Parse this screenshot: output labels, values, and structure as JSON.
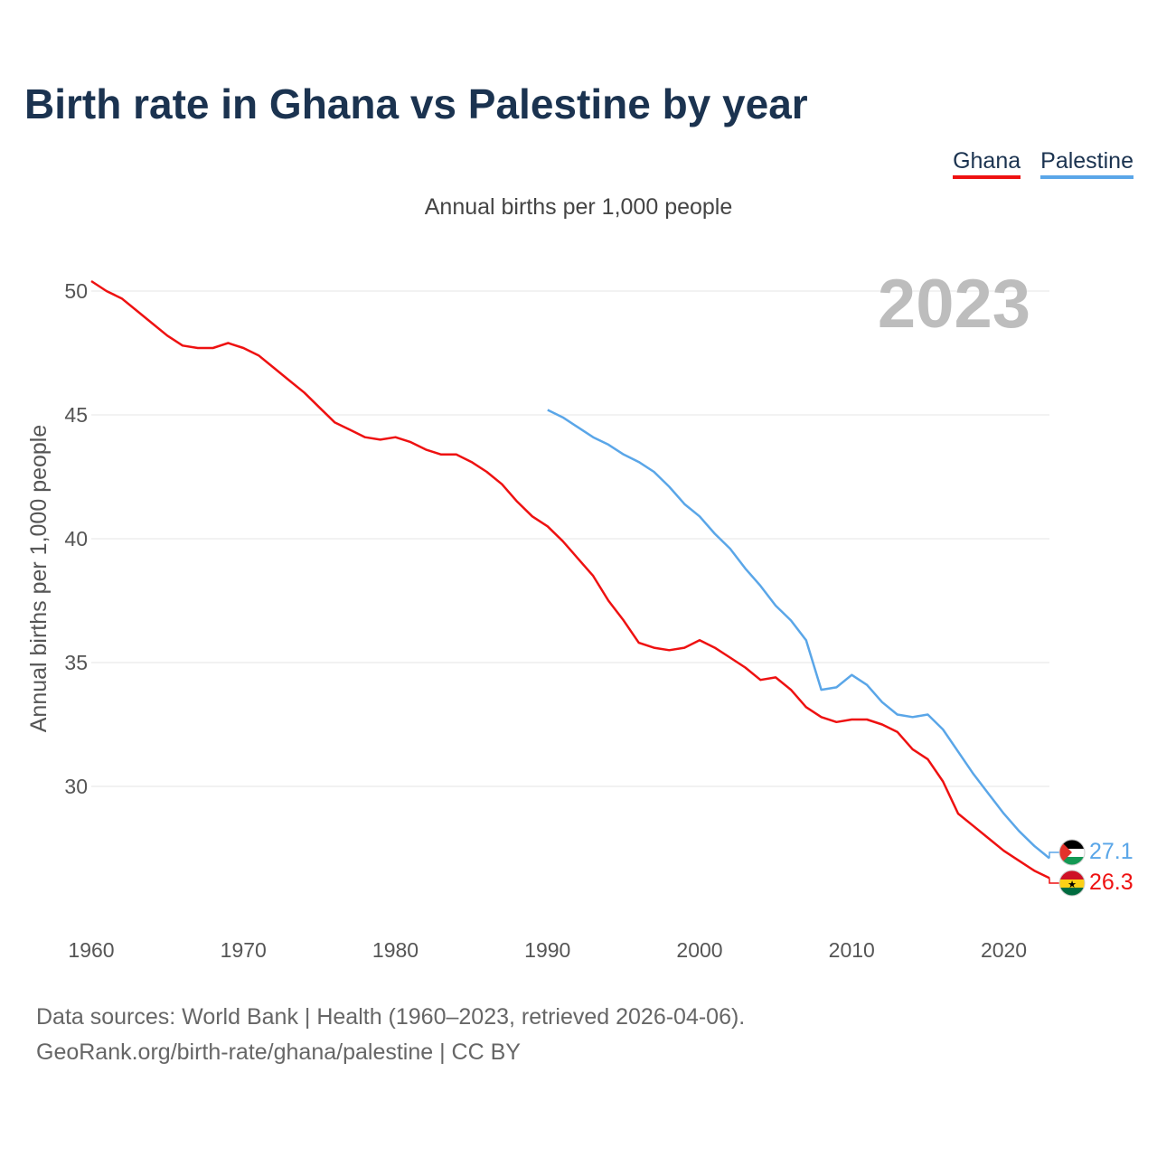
{
  "title": "Birth rate in Ghana vs Palestine by year",
  "subtitle": "Annual births per 1,000 people",
  "footer": {
    "line1": "Data sources: World Bank | Health (1960–2023, retrieved 2026-04-06).",
    "line2": "GeoRank.org/birth-rate/ghana/palestine | CC BY"
  },
  "colors": {
    "ghana": "#ee1111",
    "palestine": "#5aa6e8",
    "title": "#1b3350"
  },
  "chart_data": {
    "type": "line",
    "title": "Birth rate in Ghana vs Palestine by year",
    "ylabel": "Annual births per 1,000 people",
    "xlabel": "",
    "xlim": [
      1960,
      2023
    ],
    "ylim": [
      25,
      51
    ],
    "xticks": [
      1960,
      1970,
      1980,
      1990,
      2000,
      2010,
      2020
    ],
    "yticks": [
      30,
      35,
      40,
      45,
      50
    ],
    "grid": true,
    "legend": "top-right",
    "year_label": "2023",
    "series": [
      {
        "name": "Ghana",
        "color": "#ee1111",
        "flag": "ghana-flag",
        "end_label": "26.3",
        "x": [
          1960,
          1961,
          1962,
          1963,
          1964,
          1965,
          1966,
          1967,
          1968,
          1969,
          1970,
          1971,
          1972,
          1973,
          1974,
          1975,
          1976,
          1977,
          1978,
          1979,
          1980,
          1981,
          1982,
          1983,
          1984,
          1985,
          1986,
          1987,
          1988,
          1989,
          1990,
          1991,
          1992,
          1993,
          1994,
          1995,
          1996,
          1997,
          1998,
          1999,
          2000,
          2001,
          2002,
          2003,
          2004,
          2005,
          2006,
          2007,
          2008,
          2009,
          2010,
          2011,
          2012,
          2013,
          2014,
          2015,
          2016,
          2017,
          2018,
          2019,
          2020,
          2021,
          2022,
          2023
        ],
        "values": [
          50.4,
          50.0,
          49.7,
          49.2,
          48.7,
          48.2,
          47.8,
          47.7,
          47.7,
          47.9,
          47.7,
          47.4,
          46.9,
          46.4,
          45.9,
          45.3,
          44.7,
          44.4,
          44.1,
          44.0,
          44.1,
          43.9,
          43.6,
          43.4,
          43.4,
          43.1,
          42.7,
          42.2,
          41.5,
          40.9,
          40.5,
          39.9,
          39.2,
          38.5,
          37.5,
          36.7,
          35.8,
          35.6,
          35.5,
          35.6,
          35.9,
          35.6,
          35.2,
          34.8,
          34.3,
          34.4,
          33.9,
          33.2,
          32.8,
          32.6,
          32.7,
          32.7,
          32.5,
          32.2,
          31.5,
          31.1,
          30.2,
          28.9,
          28.4,
          27.9,
          27.4,
          27.0,
          26.6,
          26.3
        ]
      },
      {
        "name": "Palestine",
        "color": "#5aa6e8",
        "flag": "palestine-flag",
        "end_label": "27.1",
        "x": [
          1990,
          1991,
          1992,
          1993,
          1994,
          1995,
          1996,
          1997,
          1998,
          1999,
          2000,
          2001,
          2002,
          2003,
          2004,
          2005,
          2006,
          2007,
          2008,
          2009,
          2010,
          2011,
          2012,
          2013,
          2014,
          2015,
          2016,
          2017,
          2018,
          2019,
          2020,
          2021,
          2022,
          2023
        ],
        "values": [
          45.2,
          44.9,
          44.5,
          44.1,
          43.8,
          43.4,
          43.1,
          42.7,
          42.1,
          41.4,
          40.9,
          40.2,
          39.6,
          38.8,
          38.1,
          37.3,
          36.7,
          35.9,
          33.9,
          34.0,
          34.5,
          34.1,
          33.4,
          32.9,
          32.8,
          32.9,
          32.3,
          31.4,
          30.5,
          29.7,
          28.9,
          28.2,
          27.6,
          27.1
        ]
      }
    ]
  }
}
